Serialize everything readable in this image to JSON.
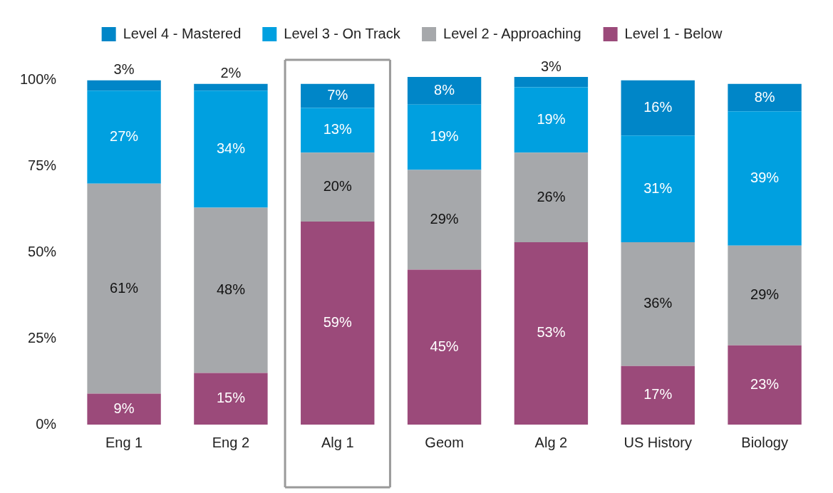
{
  "chart_data": {
    "type": "bar",
    "stacked": true,
    "categories": [
      "Eng 1",
      "Eng 2",
      "Alg 1",
      "Geom",
      "Alg 2",
      "US History",
      "Biology"
    ],
    "series": [
      {
        "name": "Level 1 - Below",
        "color": "#9b4a7a",
        "values": [
          9,
          15,
          59,
          45,
          53,
          17,
          23
        ],
        "value_labels": [
          "9%",
          "15%",
          "59%",
          "45%",
          "53%",
          "17%",
          "23%"
        ]
      },
      {
        "name": "Level 2 - Approaching",
        "color": "#a6a8ab",
        "values": [
          61,
          48,
          20,
          29,
          26,
          36,
          29
        ],
        "value_labels": [
          "61%",
          "48%",
          "20%",
          "29%",
          "26%",
          "36%",
          "29%"
        ]
      },
      {
        "name": "Level 3 - On Track",
        "color": "#00a0e0",
        "values": [
          27,
          34,
          13,
          19,
          19,
          31,
          39
        ],
        "value_labels": [
          "27%",
          "34%",
          "13%",
          "19%",
          "19%",
          "31%",
          "39%"
        ]
      },
      {
        "name": "Level 4 - Mastered",
        "color": "#0086c8",
        "values": [
          3,
          2,
          7,
          8,
          3,
          16,
          8
        ],
        "value_labels": [
          "3%",
          "2%",
          "7%",
          "8%",
          "3%",
          "16%",
          "8%"
        ]
      }
    ],
    "ylim": [
      0,
      101
    ],
    "yticks": [
      {
        "value": 0,
        "label": "0%"
      },
      {
        "value": 25,
        "label": "25%"
      },
      {
        "value": 50,
        "label": "50%"
      },
      {
        "value": 75,
        "label": "75%"
      },
      {
        "value": 100,
        "label": "100%"
      }
    ],
    "grid": false,
    "legend": "top"
  }
}
